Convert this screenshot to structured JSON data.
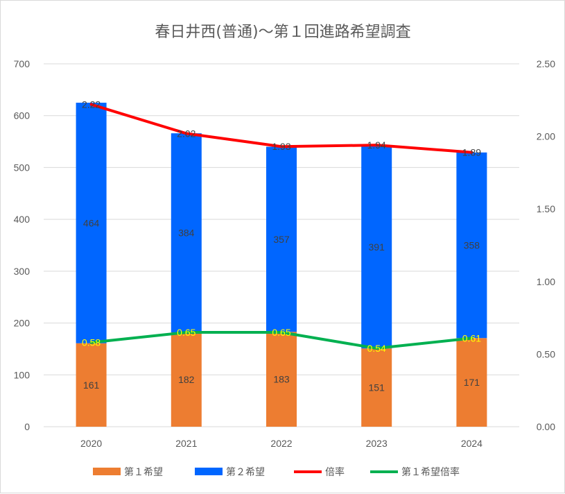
{
  "chart_data": {
    "type": "bar",
    "title": "春日井西(普通)〜第１回進路希望調査",
    "categories": [
      "2020",
      "2021",
      "2022",
      "2023",
      "2024"
    ],
    "series": [
      {
        "name": "第１希望",
        "kind": "bar",
        "axis": "left",
        "color": "#ED7D31",
        "values": [
          161,
          182,
          183,
          151,
          171
        ]
      },
      {
        "name": "第２希望",
        "kind": "bar",
        "axis": "left",
        "color": "#0066FF",
        "values": [
          464,
          384,
          357,
          391,
          358
        ]
      },
      {
        "name": "倍率",
        "kind": "line",
        "axis": "right",
        "color": "#FF0000",
        "values": [
          2.22,
          2.02,
          1.93,
          1.94,
          1.89
        ]
      },
      {
        "name": "第１希望倍率",
        "kind": "line",
        "axis": "right",
        "color": "#00B050",
        "values": [
          0.58,
          0.65,
          0.65,
          0.54,
          0.61
        ]
      }
    ],
    "bar_labels": [
      [
        "161",
        "182",
        "183",
        "151",
        "171"
      ],
      [
        "464",
        "384",
        "357",
        "391",
        "358"
      ]
    ],
    "line_labels": [
      [
        "2.22",
        "2.02",
        "1.93",
        "1.94",
        "1.89"
      ],
      [
        "0.58",
        "0.65",
        "0.65",
        "0.54",
        "0.61"
      ]
    ],
    "ylim_left": [
      0,
      700
    ],
    "yticks_left": [
      "0",
      "100",
      "200",
      "300",
      "400",
      "500",
      "600",
      "700"
    ],
    "ylim_right": [
      0,
      2.5
    ],
    "yticks_right": [
      "0.00",
      "0.50",
      "1.00",
      "1.50",
      "2.00",
      "2.50"
    ],
    "stacked": true,
    "grid": true,
    "legend_position": "bottom"
  }
}
